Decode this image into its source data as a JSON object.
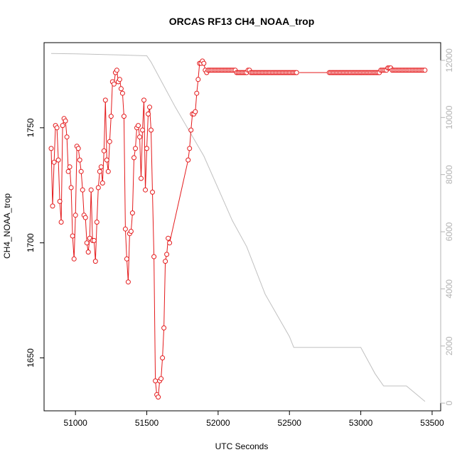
{
  "colors": {
    "series": "#e41a1c",
    "altitude": "#c0c0c0",
    "axis": "#000000",
    "axis_right": "#b3b3b3"
  },
  "chart_data": {
    "type": "line",
    "title": "ORCAS RF13 CH4_NOAA_trop",
    "xlabel": "UTC Seconds",
    "ylabel": "CH4_NOAA_trop",
    "xlim": [
      50780,
      53560
    ],
    "ylim": [
      1627,
      1787
    ],
    "y2lim": [
      -270,
      12620
    ],
    "x_ticks": [
      51000,
      51500,
      52000,
      52500,
      53000,
      53500
    ],
    "y_ticks": [
      1650,
      1700,
      1750
    ],
    "y2_ticks": [
      0,
      2000,
      4000,
      6000,
      8000,
      10000,
      12000
    ],
    "grid": false,
    "series": [
      {
        "segments": [
          [
            [
              50830,
              1741
            ],
            [
              50840,
              1716
            ],
            [
              50850,
              1735
            ],
            [
              50860,
              1751
            ],
            [
              50870,
              1750
            ],
            [
              50880,
              1736
            ],
            [
              50890,
              1718
            ],
            [
              50900,
              1709
            ],
            [
              50910,
              1751
            ],
            [
              50920,
              1754
            ],
            [
              50930,
              1753
            ],
            [
              50940,
              1746
            ],
            [
              50950,
              1731
            ],
            [
              50960,
              1733
            ],
            [
              50970,
              1724
            ],
            [
              50980,
              1703
            ],
            [
              50990,
              1693
            ],
            [
              51000,
              1712
            ],
            [
              51010,
              1742
            ],
            [
              51020,
              1741
            ],
            [
              51030,
              1736
            ],
            [
              51040,
              1731
            ],
            [
              51050,
              1723
            ],
            [
              51060,
              1712
            ],
            [
              51070,
              1711
            ],
            [
              51080,
              1700
            ],
            [
              51090,
              1696
            ],
            [
              51100,
              1702
            ],
            [
              51110,
              1723
            ],
            [
              51120,
              1701
            ],
            [
              51130,
              1701
            ],
            [
              51140,
              1692
            ],
            [
              51150,
              1709
            ],
            [
              51160,
              1724
            ],
            [
              51170,
              1731
            ],
            [
              51180,
              1733
            ],
            [
              51190,
              1726
            ],
            [
              51200,
              1740
            ],
            [
              51210,
              1762
            ],
            [
              51220,
              1736
            ],
            [
              51230,
              1731
            ],
            [
              51240,
              1744
            ],
            [
              51250,
              1755
            ],
            [
              51260,
              1770
            ],
            [
              51270,
              1769
            ],
            [
              51280,
              1774
            ],
            [
              51290,
              1775
            ],
            [
              51300,
              1770
            ],
            [
              51310,
              1771
            ],
            [
              51320,
              1767
            ],
            [
              51330,
              1765
            ],
            [
              51340,
              1755
            ],
            [
              51350,
              1706
            ],
            [
              51360,
              1693
            ],
            [
              51370,
              1683
            ],
            [
              51380,
              1704
            ],
            [
              51390,
              1705
            ],
            [
              51400,
              1713
            ],
            [
              51410,
              1737
            ],
            [
              51420,
              1741
            ],
            [
              51430,
              1750
            ],
            [
              51440,
              1751
            ],
            [
              51450,
              1746
            ],
            [
              51460,
              1728
            ],
            [
              51470,
              1749
            ],
            [
              51480,
              1762
            ],
            [
              51490,
              1723
            ],
            [
              51500,
              1741
            ],
            [
              51510,
              1756
            ],
            [
              51520,
              1759
            ],
            [
              51530,
              1749
            ],
            [
              51540,
              1722
            ],
            [
              51550,
              1694
            ],
            [
              51560,
              1640
            ],
            [
              51570,
              1634
            ],
            [
              51580,
              1633
            ],
            [
              51590,
              1640
            ],
            [
              51600,
              1641
            ],
            [
              51610,
              1650
            ],
            [
              51620,
              1663
            ],
            [
              51630,
              1692
            ],
            [
              51640,
              1695
            ],
            [
              51650,
              1702
            ],
            [
              51660,
              1700
            ],
            [
              51790,
              1736
            ],
            [
              51800,
              1741
            ],
            [
              51810,
              1749
            ],
            [
              51820,
              1756
            ],
            [
              51830,
              1756
            ],
            [
              51840,
              1757
            ],
            [
              51850,
              1765
            ],
            [
              51860,
              1771
            ],
            [
              51870,
              1778
            ],
            [
              51880,
              1778
            ],
            [
              51890,
              1779
            ],
            [
              51900,
              1778
            ],
            [
              51910,
              1775
            ],
            [
              51920,
              1774
            ],
            [
              51930,
              1775
            ],
            [
              51940,
              1775
            ],
            [
              51950,
              1775
            ],
            [
              51960,
              1775
            ],
            [
              51970,
              1775
            ],
            [
              51980,
              1775
            ],
            [
              51990,
              1775
            ],
            [
              52000,
              1775
            ],
            [
              52010,
              1775
            ],
            [
              52020,
              1775
            ],
            [
              52030,
              1775
            ],
            [
              52040,
              1775
            ],
            [
              52050,
              1775
            ],
            [
              52060,
              1775
            ],
            [
              52070,
              1775
            ],
            [
              52080,
              1775
            ],
            [
              52090,
              1775
            ],
            [
              52100,
              1775
            ],
            [
              52110,
              1775
            ],
            [
              52120,
              1775
            ],
            [
              52130,
              1774
            ],
            [
              52140,
              1774
            ],
            [
              52150,
              1774
            ],
            [
              52160,
              1774
            ],
            [
              52170,
              1774
            ],
            [
              52180,
              1774
            ],
            [
              52190,
              1774
            ],
            [
              52200,
              1774
            ],
            [
              52210,
              1775
            ],
            [
              52220,
              1775
            ],
            [
              52230,
              1774
            ],
            [
              52240,
              1774
            ],
            [
              52250,
              1774
            ],
            [
              52260,
              1774
            ],
            [
              52270,
              1774
            ],
            [
              52280,
              1774
            ],
            [
              52290,
              1774
            ],
            [
              52300,
              1774
            ],
            [
              52310,
              1774
            ],
            [
              52320,
              1774
            ],
            [
              52330,
              1774
            ],
            [
              52340,
              1774
            ],
            [
              52350,
              1774
            ],
            [
              52360,
              1774
            ],
            [
              52370,
              1774
            ],
            [
              52380,
              1774
            ],
            [
              52390,
              1774
            ],
            [
              52400,
              1774
            ],
            [
              52410,
              1774
            ],
            [
              52420,
              1774
            ],
            [
              52430,
              1774
            ],
            [
              52440,
              1774
            ],
            [
              52450,
              1774
            ],
            [
              52460,
              1774
            ],
            [
              52470,
              1774
            ],
            [
              52480,
              1774
            ],
            [
              52490,
              1774
            ],
            [
              52500,
              1774
            ],
            [
              52510,
              1774
            ],
            [
              52520,
              1774
            ],
            [
              52530,
              1774
            ],
            [
              52540,
              1774
            ],
            [
              52550,
              1774
            ]
          ],
          [
            [
              52570,
              1774
            ],
            [
              52620,
              1774
            ],
            [
              52670,
              1774
            ],
            [
              52720,
              1774
            ],
            [
              52770,
              1774
            ]
          ],
          [
            [
              52780,
              1774
            ],
            [
              52790,
              1774
            ],
            [
              52800,
              1774
            ],
            [
              52810,
              1774
            ],
            [
              52820,
              1774
            ],
            [
              52830,
              1774
            ],
            [
              52840,
              1774
            ],
            [
              52850,
              1774
            ],
            [
              52860,
              1774
            ],
            [
              52870,
              1774
            ],
            [
              52880,
              1774
            ],
            [
              52890,
              1774
            ],
            [
              52900,
              1774
            ],
            [
              52910,
              1774
            ],
            [
              52920,
              1774
            ],
            [
              52930,
              1774
            ],
            [
              52940,
              1774
            ],
            [
              52950,
              1774
            ],
            [
              52960,
              1774
            ],
            [
              52970,
              1774
            ],
            [
              52980,
              1774
            ],
            [
              52990,
              1774
            ],
            [
              53000,
              1774
            ],
            [
              53010,
              1774
            ],
            [
              53020,
              1774
            ],
            [
              53030,
              1774
            ],
            [
              53040,
              1774
            ],
            [
              53050,
              1774
            ],
            [
              53060,
              1774
            ],
            [
              53070,
              1774
            ],
            [
              53080,
              1774
            ],
            [
              53090,
              1774
            ],
            [
              53100,
              1774
            ],
            [
              53110,
              1774
            ],
            [
              53120,
              1774
            ],
            [
              53130,
              1774
            ],
            [
              53140,
              1775
            ],
            [
              53150,
              1775
            ],
            [
              53160,
              1775
            ],
            [
              53170,
              1775
            ],
            [
              53180,
              1775
            ],
            [
              53190,
              1776
            ],
            [
              53200,
              1776
            ],
            [
              53210,
              1776
            ],
            [
              53220,
              1775
            ],
            [
              53230,
              1775
            ],
            [
              53240,
              1775
            ],
            [
              53250,
              1775
            ],
            [
              53260,
              1775
            ],
            [
              53270,
              1775
            ],
            [
              53280,
              1775
            ],
            [
              53290,
              1775
            ],
            [
              53300,
              1775
            ],
            [
              53310,
              1775
            ],
            [
              53320,
              1775
            ],
            [
              53330,
              1775
            ],
            [
              53340,
              1775
            ],
            [
              53350,
              1775
            ],
            [
              53360,
              1775
            ],
            [
              53370,
              1775
            ],
            [
              53380,
              1775
            ],
            [
              53390,
              1775
            ],
            [
              53400,
              1775
            ],
            [
              53410,
              1775
            ],
            [
              53420,
              1775
            ],
            [
              53430,
              1775
            ],
            [
              53440,
              1775
            ],
            [
              53450,
              1775
            ]
          ]
        ]
      },
      {
        "axis": "right",
        "points": [
          [
            50830,
            12240
          ],
          [
            51000,
            12230
          ],
          [
            51300,
            12190
          ],
          [
            51500,
            12160
          ],
          [
            51530,
            11940
          ],
          [
            51700,
            10360
          ],
          [
            51900,
            8650
          ],
          [
            52100,
            6390
          ],
          [
            52200,
            5480
          ],
          [
            52330,
            3810
          ],
          [
            52500,
            2330
          ],
          [
            52530,
            1950
          ],
          [
            53000,
            1950
          ],
          [
            53100,
            1030
          ],
          [
            53160,
            600
          ],
          [
            53320,
            600
          ],
          [
            53450,
            60
          ]
        ]
      }
    ]
  }
}
